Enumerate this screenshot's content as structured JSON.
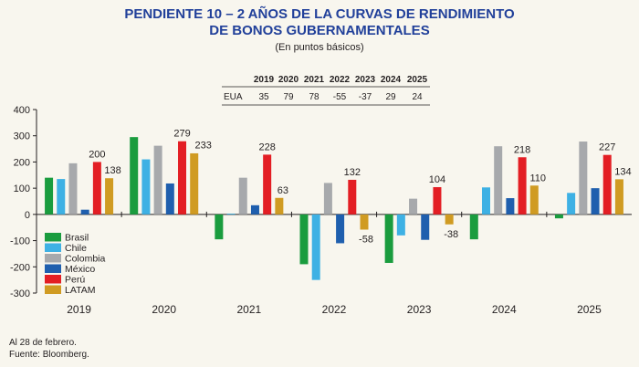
{
  "header": {
    "title_line1": "PENDIENTE 10 – 2 AÑOS DE LA CURVAS DE RENDIMIENTO",
    "title_line2": "DE BONOS GUBERNAMENTALES",
    "subtitle": "(En puntos básicos)"
  },
  "eua_table": {
    "row_label": "EUA",
    "years": [
      "2019",
      "2020",
      "2021",
      "2022",
      "2023",
      "2024",
      "2025"
    ],
    "values": [
      "35",
      "79",
      "78",
      "-55",
      "-37",
      "29",
      "24"
    ]
  },
  "notes": {
    "date_note": "Al 28 de febrero.",
    "source": "Fuente: Bloomberg."
  },
  "colors": {
    "title": "#21409a",
    "axis": "#231f20",
    "table_rule": "#231f20"
  },
  "chart_data": {
    "type": "bar",
    "categories": [
      "2019",
      "2020",
      "2021",
      "2022",
      "2023",
      "2024",
      "2025"
    ],
    "ylim": [
      -300,
      400
    ],
    "yticks": [
      -300,
      -200,
      -100,
      0,
      100,
      200,
      300,
      400
    ],
    "ytick_labels": [
      "-300",
      "-200",
      "-100",
      "0",
      "100",
      "200",
      "300",
      "400"
    ],
    "grid": false,
    "legend_position": "bottom-left",
    "series": [
      {
        "name": "Brasil",
        "color": "#1a9c3e",
        "values": [
          140,
          295,
          -95,
          -190,
          -185,
          -95,
          -15
        ]
      },
      {
        "name": "Chile",
        "color": "#3eb1e4",
        "values": [
          135,
          210,
          3,
          -250,
          -80,
          103,
          82
        ]
      },
      {
        "name": "Colombia",
        "color": "#a7a9ac",
        "values": [
          195,
          262,
          140,
          120,
          60,
          260,
          278
        ]
      },
      {
        "name": "México",
        "color": "#1f5fae",
        "values": [
          18,
          118,
          35,
          -110,
          -97,
          62,
          100
        ]
      },
      {
        "name": "Perú",
        "color": "#e31e24",
        "values": [
          200,
          279,
          228,
          132,
          104,
          218,
          227
        ]
      },
      {
        "name": "LATAM",
        "color": "#d09b22",
        "values": [
          138,
          233,
          63,
          -58,
          -38,
          110,
          134
        ]
      }
    ],
    "value_labels": {
      "series": "Perú",
      "second_series": "LATAM",
      "perú": [
        "200",
        "279",
        "228",
        "132",
        "104",
        "218",
        "227"
      ],
      "latam": [
        "138",
        "233",
        "63",
        "-58",
        "-38",
        "110",
        "134"
      ]
    }
  }
}
